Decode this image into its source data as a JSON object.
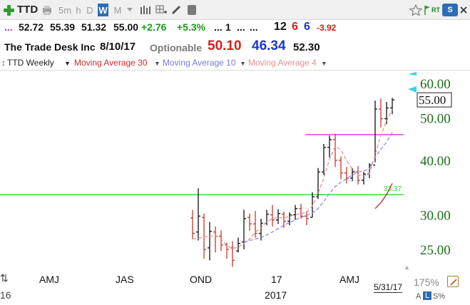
{
  "toolbar": {
    "symbol": "TTD",
    "intervals": [
      "5m",
      "h",
      "D",
      "W",
      "M"
    ],
    "active_interval": "W",
    "rt_label": "RT",
    "s_label": "S"
  },
  "quote": {
    "open": "52.72",
    "high": "55.39",
    "low": "51.32",
    "close": "55.00",
    "change": "+2.76",
    "change_pct": "+5.3%",
    "dots_a": "...",
    "one": "1",
    "dots_b": "...",
    "dots_c": "...",
    "twelve": "12",
    "six_a": "6",
    "six_b": "6",
    "neg": "-3.92"
  },
  "info": {
    "company": "The Trade Desk Inc",
    "date": "8/10/17",
    "optionable": "Optionable",
    "price_red": "50.10",
    "price_blue": "46.34",
    "price_black": "52.30"
  },
  "legend": {
    "series": "TTD Weekly",
    "ma30": "Moving Average 30",
    "ma10": "Moving Average 10",
    "ma4": "Moving Average 4"
  },
  "colors": {
    "ma30": "#d42a2a",
    "ma10": "#8a8ae6",
    "ma4": "#ec8f8f",
    "horizontal_magenta": "#e040e0",
    "horizontal_green": "#3adc3a",
    "axis_text": "#1a6e1a"
  },
  "chart_data": {
    "type": "ohlc",
    "y_scale": "log",
    "y_ticks": [
      "60.00",
      "50.00",
      "40.00",
      "30.00",
      "25.00"
    ],
    "last_price_label": "55.00",
    "ylim": [
      22.5,
      63
    ],
    "x_labels": [
      "AMJ",
      "JAS",
      "OND",
      "17",
      "AMJ"
    ],
    "x_year_label": "2017",
    "x_left_label": "16",
    "green_line_label": "33.37",
    "green_line_value": 33.37,
    "magenta_line_value": 45.8,
    "bars": [
      {
        "h": 30.8,
        "l": 26.4,
        "o": 29.5,
        "c": 27.2
      },
      {
        "h": 34.5,
        "l": 26.2,
        "o": 27.4,
        "c": 29.8
      },
      {
        "h": 30.2,
        "l": 23.8,
        "o": 29.6,
        "c": 25.0
      },
      {
        "h": 28.9,
        "l": 23.6,
        "o": 25.2,
        "c": 27.5
      },
      {
        "h": 28.2,
        "l": 24.6,
        "o": 27.4,
        "c": 26.8
      },
      {
        "h": 27.6,
        "l": 24.8,
        "o": 26.8,
        "c": 25.6
      },
      {
        "h": 25.9,
        "l": 23.8,
        "o": 25.6,
        "c": 25.0
      },
      {
        "h": 26.1,
        "l": 22.8,
        "o": 25.2,
        "c": 23.6
      },
      {
        "h": 26.6,
        "l": 24.6,
        "o": 24.8,
        "c": 25.8
      },
      {
        "h": 30.8,
        "l": 25.0,
        "o": 26.0,
        "c": 29.4
      },
      {
        "h": 30.2,
        "l": 27.6,
        "o": 29.6,
        "c": 28.6
      },
      {
        "h": 30.6,
        "l": 26.6,
        "o": 28.6,
        "c": 27.2
      },
      {
        "h": 29.4,
        "l": 26.2,
        "o": 27.2,
        "c": 28.7
      },
      {
        "h": 30.8,
        "l": 28.4,
        "o": 28.7,
        "c": 30.1
      },
      {
        "h": 31.6,
        "l": 28.2,
        "o": 30.0,
        "c": 29.2
      },
      {
        "h": 30.9,
        "l": 28.6,
        "o": 29.2,
        "c": 30.2
      },
      {
        "h": 30.5,
        "l": 28.0,
        "o": 30.1,
        "c": 29.0
      },
      {
        "h": 30.4,
        "l": 28.4,
        "o": 29.0,
        "c": 30.0
      },
      {
        "h": 31.6,
        "l": 29.2,
        "o": 30.0,
        "c": 31.0
      },
      {
        "h": 31.8,
        "l": 29.4,
        "o": 31.0,
        "c": 29.8
      },
      {
        "h": 30.6,
        "l": 28.4,
        "o": 29.8,
        "c": 29.4
      },
      {
        "h": 33.8,
        "l": 29.6,
        "o": 29.6,
        "c": 33.0
      },
      {
        "h": 38.4,
        "l": 32.6,
        "o": 33.0,
        "c": 37.6
      },
      {
        "h": 43.6,
        "l": 37.0,
        "o": 37.6,
        "c": 42.8
      },
      {
        "h": 45.6,
        "l": 40.6,
        "o": 42.8,
        "c": 44.6
      },
      {
        "h": 46.0,
        "l": 38.6,
        "o": 44.6,
        "c": 40.0
      },
      {
        "h": 40.8,
        "l": 36.2,
        "o": 40.0,
        "c": 37.4
      },
      {
        "h": 38.6,
        "l": 35.4,
        "o": 37.4,
        "c": 36.4
      },
      {
        "h": 38.4,
        "l": 35.8,
        "o": 36.4,
        "c": 37.6
      },
      {
        "h": 38.8,
        "l": 35.2,
        "o": 37.6,
        "c": 36.0
      },
      {
        "h": 37.6,
        "l": 35.2,
        "o": 36.0,
        "c": 37.2
      },
      {
        "h": 39.4,
        "l": 36.4,
        "o": 37.2,
        "c": 39.0
      },
      {
        "h": 54.8,
        "l": 39.6,
        "o": 39.0,
        "c": 52.4
      },
      {
        "h": 55.4,
        "l": 47.6,
        "o": 52.4,
        "c": 49.8
      },
      {
        "h": 54.4,
        "l": 48.4,
        "o": 49.8,
        "c": 52.7
      },
      {
        "h": 55.6,
        "l": 51.0,
        "o": 52.7,
        "c": 55.0
      }
    ],
    "ma4": [
      26.4,
      26.5,
      26.7,
      26.8,
      26.9,
      26.4,
      25.5,
      25.1,
      25.3,
      25.8,
      26.4,
      27.4,
      28.0,
      28.9,
      29.4,
      29.6,
      29.5,
      29.8,
      30.0,
      30.2,
      30.4,
      31.4,
      33.6,
      36.4,
      40.2,
      43.0,
      42.2,
      40.0,
      38.2,
      37.0,
      36.8,
      37.2,
      41.2,
      45.6,
      49.2,
      52.4
    ],
    "ma10": [
      null,
      null,
      null,
      null,
      null,
      null,
      null,
      null,
      null,
      26.0,
      26.2,
      26.4,
      26.6,
      27.0,
      27.4,
      27.9,
      28.4,
      28.8,
      29.2,
      29.6,
      29.9,
      30.3,
      31.0,
      32.2,
      33.6,
      34.8,
      35.6,
      36.3,
      37.0,
      37.6,
      37.8,
      38.2,
      40.6,
      42.4,
      44.0,
      46.3
    ],
    "ma30": [
      null,
      null,
      null,
      null,
      null,
      null,
      null,
      null,
      null,
      null,
      null,
      null,
      null,
      null,
      null,
      null,
      null,
      null,
      null,
      null,
      null,
      null,
      null,
      null,
      null,
      null,
      null,
      null,
      null,
      null,
      null,
      null,
      31.0,
      32.0,
      33.4,
      35.4
    ]
  },
  "footer": {
    "date_box": "5/31/17",
    "zoom": "175%",
    "a_label": "A",
    "l_label": "L",
    "s_pct": "S%"
  }
}
